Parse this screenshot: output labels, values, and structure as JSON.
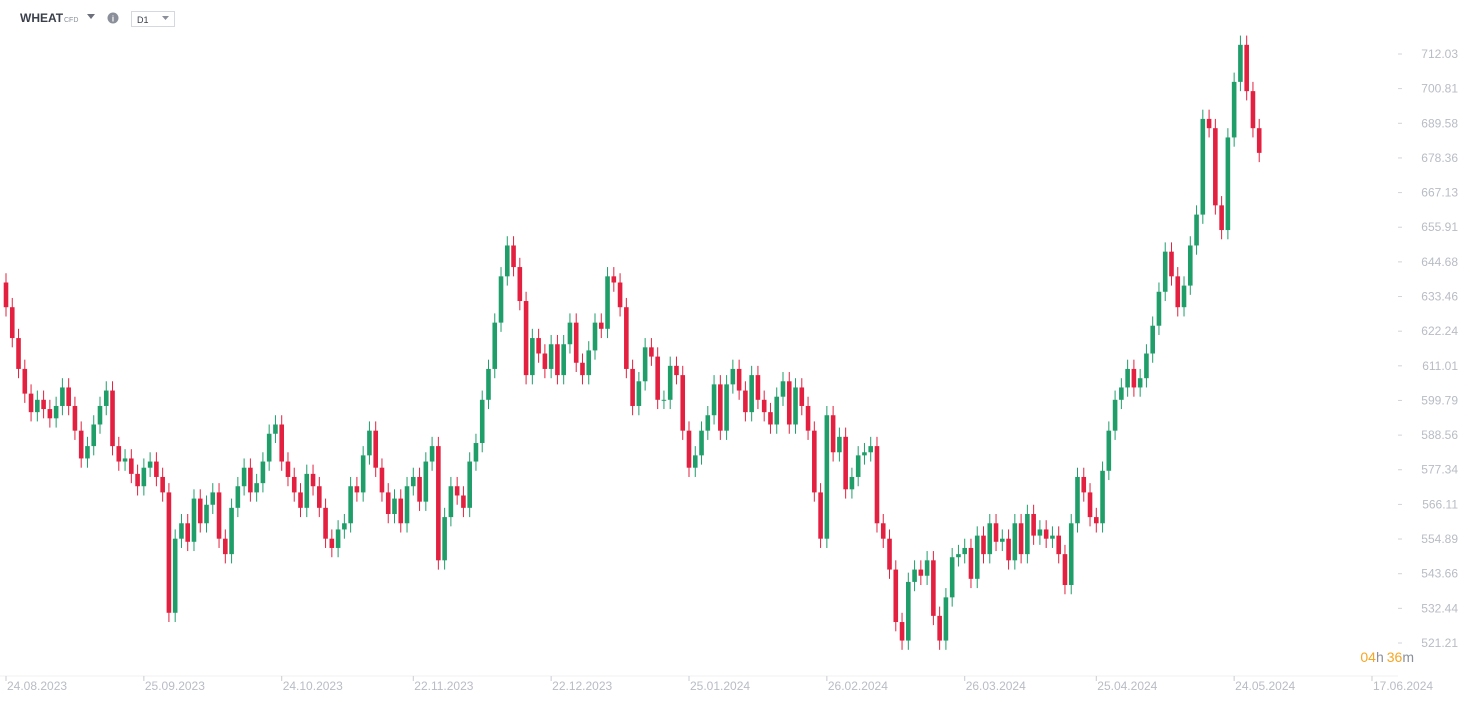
{
  "header": {
    "symbol": "WHEAT",
    "instrument_type": "CFD",
    "timeframe": "D1"
  },
  "countdown": {
    "hours": "04",
    "hours_unit": "h",
    "minutes": "36",
    "minutes_unit": "m"
  },
  "chart_data": {
    "type": "candlestick",
    "up_color": "#1f9e6a",
    "down_color": "#e3203f",
    "ylim": [
      521.21,
      712.03
    ],
    "yticks": [
      712.03,
      700.81,
      689.58,
      678.36,
      667.13,
      655.91,
      644.68,
      633.46,
      622.24,
      611.01,
      599.79,
      588.56,
      577.34,
      566.11,
      554.89,
      543.66,
      532.44,
      521.21
    ],
    "xlim": [
      0,
      218
    ],
    "xticks": [
      {
        "value": 0,
        "label": "24.08.2023"
      },
      {
        "value": 22,
        "label": "25.09.2023"
      },
      {
        "value": 44,
        "label": "24.10.2023"
      },
      {
        "value": 65,
        "label": "22.11.2023"
      },
      {
        "value": 87,
        "label": "22.12.2023"
      },
      {
        "value": 109,
        "label": "25.01.2024"
      },
      {
        "value": 131,
        "label": "26.02.2024"
      },
      {
        "value": 153,
        "label": "26.03.2024"
      },
      {
        "value": 174,
        "label": "25.04.2024"
      },
      {
        "value": 196,
        "label": "24.05.2024"
      },
      {
        "value": 218,
        "label": "17.06.2024"
      }
    ],
    "candles": [
      [
        638,
        641,
        627,
        630
      ],
      [
        630,
        633,
        617,
        620
      ],
      [
        620,
        623,
        607,
        610
      ],
      [
        610,
        613,
        599,
        602
      ],
      [
        602,
        605,
        593,
        596
      ],
      [
        596,
        603,
        593,
        600
      ],
      [
        600,
        603,
        594,
        597
      ],
      [
        597,
        600,
        591,
        594
      ],
      [
        594,
        601,
        591,
        598
      ],
      [
        598,
        607,
        595,
        604
      ],
      [
        604,
        607,
        595,
        598
      ],
      [
        598,
        601,
        587,
        590
      ],
      [
        590,
        593,
        578,
        581
      ],
      [
        581,
        588,
        578,
        585
      ],
      [
        585,
        595,
        582,
        592
      ],
      [
        592,
        601,
        589,
        598
      ],
      [
        598,
        606,
        595,
        603
      ],
      [
        603,
        606,
        582,
        585
      ],
      [
        585,
        588,
        577,
        580
      ],
      [
        580,
        584,
        577,
        581
      ],
      [
        581,
        584,
        573,
        576
      ],
      [
        576,
        579,
        569,
        572
      ],
      [
        572,
        581,
        569,
        578
      ],
      [
        578,
        583,
        575,
        580
      ],
      [
        580,
        583,
        572,
        575
      ],
      [
        575,
        578,
        567,
        570
      ],
      [
        570,
        573,
        528,
        531
      ],
      [
        531,
        558,
        528,
        555
      ],
      [
        555,
        563,
        552,
        560
      ],
      [
        560,
        563,
        551,
        554
      ],
      [
        554,
        571,
        551,
        568
      ],
      [
        568,
        571,
        557,
        560
      ],
      [
        560,
        569,
        557,
        566
      ],
      [
        566,
        573,
        563,
        570
      ],
      [
        570,
        573,
        552,
        555
      ],
      [
        555,
        558,
        547,
        550
      ],
      [
        550,
        568,
        547,
        565
      ],
      [
        565,
        575,
        562,
        572
      ],
      [
        572,
        581,
        569,
        578
      ],
      [
        578,
        581,
        567,
        570
      ],
      [
        570,
        576,
        567,
        573
      ],
      [
        573,
        583,
        570,
        580
      ],
      [
        580,
        592,
        577,
        589
      ],
      [
        589,
        595,
        586,
        592
      ],
      [
        592,
        595,
        577,
        580
      ],
      [
        580,
        583,
        572,
        575
      ],
      [
        575,
        578,
        567,
        570
      ],
      [
        570,
        573,
        562,
        565
      ],
      [
        565,
        579,
        562,
        576
      ],
      [
        576,
        579,
        569,
        572
      ],
      [
        572,
        575,
        562,
        565
      ],
      [
        565,
        568,
        552,
        555
      ],
      [
        555,
        558,
        549,
        552
      ],
      [
        552,
        561,
        549,
        558
      ],
      [
        558,
        563,
        555,
        560
      ],
      [
        560,
        575,
        557,
        572
      ],
      [
        572,
        575,
        567,
        570
      ],
      [
        570,
        585,
        567,
        582
      ],
      [
        582,
        593,
        579,
        590
      ],
      [
        590,
        593,
        575,
        578
      ],
      [
        578,
        581,
        567,
        570
      ],
      [
        570,
        573,
        560,
        563
      ],
      [
        563,
        571,
        560,
        568
      ],
      [
        568,
        571,
        557,
        560
      ],
      [
        560,
        575,
        557,
        572
      ],
      [
        572,
        578,
        569,
        575
      ],
      [
        575,
        578,
        564,
        567
      ],
      [
        567,
        583,
        564,
        580
      ],
      [
        580,
        588,
        577,
        585
      ],
      [
        585,
        588,
        545,
        548
      ],
      [
        548,
        565,
        545,
        562
      ],
      [
        562,
        575,
        559,
        572
      ],
      [
        572,
        575,
        566,
        569
      ],
      [
        569,
        572,
        562,
        565
      ],
      [
        565,
        583,
        562,
        580
      ],
      [
        580,
        589,
        577,
        586
      ],
      [
        586,
        603,
        583,
        600
      ],
      [
        600,
        613,
        597,
        610
      ],
      [
        610,
        628,
        607,
        625
      ],
      [
        625,
        643,
        622,
        640
      ],
      [
        640,
        653,
        637,
        650
      ],
      [
        650,
        653,
        640,
        643
      ],
      [
        643,
        646,
        629,
        632
      ],
      [
        632,
        635,
        605,
        608
      ],
      [
        608,
        623,
        605,
        620
      ],
      [
        620,
        623,
        612,
        615
      ],
      [
        615,
        618,
        607,
        610
      ],
      [
        610,
        621,
        607,
        618
      ],
      [
        618,
        621,
        605,
        608
      ],
      [
        608,
        621,
        605,
        618
      ],
      [
        618,
        628,
        615,
        625
      ],
      [
        625,
        628,
        609,
        612
      ],
      [
        612,
        615,
        605,
        608
      ],
      [
        608,
        619,
        605,
        616
      ],
      [
        616,
        628,
        613,
        625
      ],
      [
        625,
        628,
        620,
        623
      ],
      [
        623,
        643,
        620,
        640
      ],
      [
        640,
        643,
        635,
        638
      ],
      [
        638,
        641,
        627,
        630
      ],
      [
        630,
        633,
        607,
        610
      ],
      [
        610,
        613,
        595,
        598
      ],
      [
        598,
        609,
        595,
        606
      ],
      [
        606,
        620,
        603,
        617
      ],
      [
        617,
        620,
        611,
        614
      ],
      [
        614,
        617,
        597,
        600
      ],
      [
        600,
        603,
        597,
        600
      ],
      [
        600,
        614,
        597,
        611
      ],
      [
        611,
        614,
        605,
        608
      ],
      [
        608,
        611,
        587,
        590
      ],
      [
        590,
        593,
        575,
        578
      ],
      [
        578,
        585,
        575,
        582
      ],
      [
        582,
        593,
        579,
        590
      ],
      [
        590,
        598,
        587,
        595
      ],
      [
        595,
        608,
        592,
        605
      ],
      [
        605,
        608,
        587,
        590
      ],
      [
        590,
        608,
        587,
        605
      ],
      [
        605,
        613,
        602,
        610
      ],
      [
        610,
        613,
        600,
        603
      ],
      [
        603,
        606,
        593,
        596
      ],
      [
        596,
        611,
        593,
        608
      ],
      [
        608,
        611,
        597,
        600
      ],
      [
        600,
        603,
        593,
        596
      ],
      [
        596,
        599,
        589,
        592
      ],
      [
        592,
        604,
        589,
        601
      ],
      [
        601,
        609,
        598,
        606
      ],
      [
        606,
        609,
        589,
        592
      ],
      [
        592,
        607,
        589,
        604
      ],
      [
        604,
        607,
        595,
        598
      ],
      [
        598,
        601,
        587,
        590
      ],
      [
        590,
        593,
        567,
        570
      ],
      [
        570,
        573,
        552,
        555
      ],
      [
        555,
        598,
        552,
        595
      ],
      [
        595,
        598,
        580,
        583
      ],
      [
        583,
        591,
        580,
        588
      ],
      [
        588,
        591,
        568,
        571
      ],
      [
        571,
        578,
        568,
        575
      ],
      [
        575,
        585,
        572,
        582
      ],
      [
        582,
        586,
        579,
        583
      ],
      [
        583,
        588,
        580,
        585
      ],
      [
        585,
        588,
        557,
        560
      ],
      [
        560,
        563,
        552,
        555
      ],
      [
        555,
        558,
        542,
        545
      ],
      [
        545,
        548,
        525,
        528
      ],
      [
        528,
        531,
        519,
        522
      ],
      [
        522,
        544,
        519,
        541
      ],
      [
        541,
        548,
        538,
        545
      ],
      [
        545,
        548,
        540,
        543
      ],
      [
        543,
        551,
        540,
        548
      ],
      [
        548,
        551,
        527,
        530
      ],
      [
        530,
        533,
        519,
        522
      ],
      [
        522,
        539,
        519,
        536
      ],
      [
        536,
        552,
        533,
        549
      ],
      [
        549,
        553,
        546,
        550
      ],
      [
        550,
        555,
        547,
        552
      ],
      [
        552,
        555,
        539,
        542
      ],
      [
        542,
        559,
        539,
        556
      ],
      [
        556,
        559,
        547,
        550
      ],
      [
        550,
        563,
        547,
        560
      ],
      [
        560,
        563,
        551,
        554
      ],
      [
        554,
        558,
        551,
        555
      ],
      [
        555,
        558,
        545,
        548
      ],
      [
        548,
        563,
        545,
        560
      ],
      [
        560,
        563,
        547,
        550
      ],
      [
        550,
        566,
        547,
        563
      ],
      [
        563,
        566,
        553,
        556
      ],
      [
        556,
        561,
        553,
        558
      ],
      [
        558,
        561,
        552,
        555
      ],
      [
        555,
        559,
        552,
        556
      ],
      [
        556,
        559,
        547,
        550
      ],
      [
        550,
        553,
        537,
        540
      ],
      [
        540,
        563,
        537,
        560
      ],
      [
        560,
        578,
        557,
        575
      ],
      [
        575,
        578,
        567,
        570
      ],
      [
        570,
        573,
        559,
        562
      ],
      [
        562,
        565,
        557,
        560
      ],
      [
        560,
        580,
        557,
        577
      ],
      [
        577,
        593,
        574,
        590
      ],
      [
        590,
        603,
        587,
        600
      ],
      [
        600,
        607,
        597,
        604
      ],
      [
        604,
        613,
        601,
        610
      ],
      [
        610,
        613,
        601,
        604
      ],
      [
        604,
        610,
        601,
        607
      ],
      [
        607,
        618,
        604,
        615
      ],
      [
        615,
        627,
        612,
        624
      ],
      [
        624,
        638,
        621,
        635
      ],
      [
        635,
        651,
        632,
        648
      ],
      [
        648,
        651,
        637,
        640
      ],
      [
        640,
        643,
        627,
        630
      ],
      [
        630,
        640,
        627,
        637
      ],
      [
        637,
        653,
        634,
        650
      ],
      [
        650,
        663,
        647,
        660
      ],
      [
        660,
        694,
        657,
        691
      ],
      [
        691,
        694,
        685,
        688
      ],
      [
        688,
        691,
        660,
        663
      ],
      [
        663,
        666,
        652,
        655
      ],
      [
        655,
        688,
        652,
        685
      ],
      [
        685,
        706,
        682,
        703
      ],
      [
        703,
        718,
        700,
        715
      ],
      [
        715,
        718,
        697,
        700
      ],
      [
        700,
        703,
        685,
        688
      ],
      [
        688,
        691,
        677,
        680
      ]
    ]
  }
}
